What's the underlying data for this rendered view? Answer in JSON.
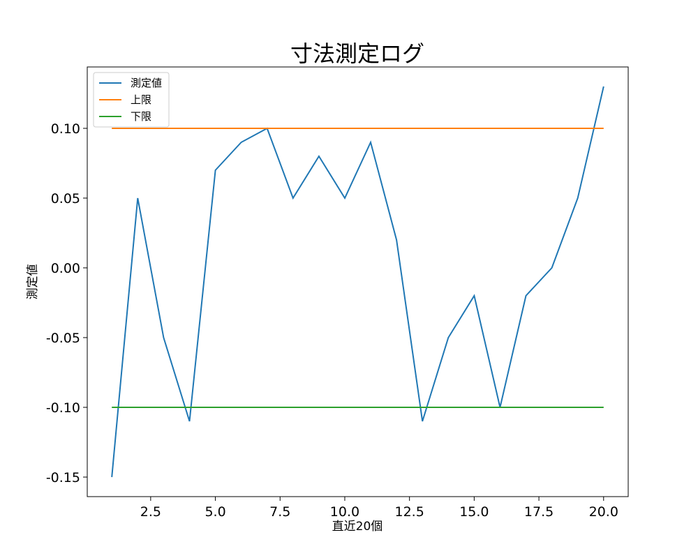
{
  "chart_data": {
    "type": "line",
    "title": "寸法測定ログ",
    "xlabel": "直近20個",
    "ylabel": "測定値",
    "x": [
      1,
      2,
      3,
      4,
      5,
      6,
      7,
      8,
      9,
      10,
      11,
      12,
      13,
      14,
      15,
      16,
      17,
      18,
      19,
      20
    ],
    "series": [
      {
        "name": "測定値",
        "color": "#1f77b4",
        "values": [
          -0.15,
          0.05,
          -0.05,
          -0.11,
          0.07,
          0.09,
          0.1,
          0.05,
          0.08,
          0.05,
          0.09,
          0.02,
          -0.11,
          -0.05,
          -0.02,
          -0.1,
          -0.02,
          0.0,
          0.05,
          0.13
        ]
      },
      {
        "name": "上限",
        "color": "#ff7f0e",
        "values": [
          0.1,
          0.1,
          0.1,
          0.1,
          0.1,
          0.1,
          0.1,
          0.1,
          0.1,
          0.1,
          0.1,
          0.1,
          0.1,
          0.1,
          0.1,
          0.1,
          0.1,
          0.1,
          0.1,
          0.1
        ]
      },
      {
        "name": "下限",
        "color": "#2ca02c",
        "values": [
          -0.1,
          -0.1,
          -0.1,
          -0.1,
          -0.1,
          -0.1,
          -0.1,
          -0.1,
          -0.1,
          -0.1,
          -0.1,
          -0.1,
          -0.1,
          -0.1,
          -0.1,
          -0.1,
          -0.1,
          -0.1,
          -0.1,
          -0.1
        ]
      }
    ],
    "xlim": [
      0.05,
      20.95
    ],
    "ylim": [
      -0.164,
      0.144
    ],
    "xticks": [
      2.5,
      5.0,
      7.5,
      10.0,
      12.5,
      15.0,
      17.5,
      20.0
    ],
    "xtick_labels": [
      "2.5",
      "5.0",
      "7.5",
      "10.0",
      "12.5",
      "15.0",
      "17.5",
      "20.0"
    ],
    "yticks": [
      -0.15,
      -0.1,
      -0.05,
      0.0,
      0.05,
      0.1
    ],
    "ytick_labels": [
      "-0.15",
      "-0.10",
      "-0.05",
      "0.00",
      "0.05",
      "0.10"
    ],
    "legend": "top-left",
    "grid": false
  }
}
